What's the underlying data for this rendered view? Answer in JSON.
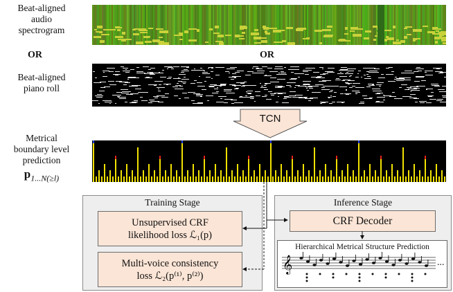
{
  "labels": {
    "spectrogram": [
      "Beat-aligned",
      "audio",
      "spectrogram"
    ],
    "or_left": "OR",
    "or_center": "OR",
    "pianoroll": [
      "Beat-aligned",
      "piano roll"
    ],
    "prediction": [
      "Metrical",
      "boundary level",
      "prediction"
    ],
    "prediction_symbol": "p",
    "prediction_subscript": "1...N(≥l)"
  },
  "tcn_label": "TCN",
  "training": {
    "title": "Training Stage",
    "loss1": [
      "Unsupervised CRF",
      "likelihood loss ℒ₁(p)"
    ],
    "loss2": [
      "Multi-voice consistency",
      "loss ℒ₂(p⁽¹⁾, p⁽²⁾)"
    ]
  },
  "inference": {
    "title": "Inference Stage",
    "decoder": "CRF Decoder",
    "score_title": "Hierarchical Metrical Structure Prediction",
    "ellipsis": "..."
  },
  "colors": {
    "spectrogram_base": "#6a9a1c",
    "spectrogram_light": "#c9d23a",
    "prediction_bar": "#f2e200",
    "prediction_red": "#e02020",
    "prediction_blue": "#2040e0",
    "loss_box_fill": "#fbe5d6",
    "panel_fill": "#eeeeee"
  }
}
